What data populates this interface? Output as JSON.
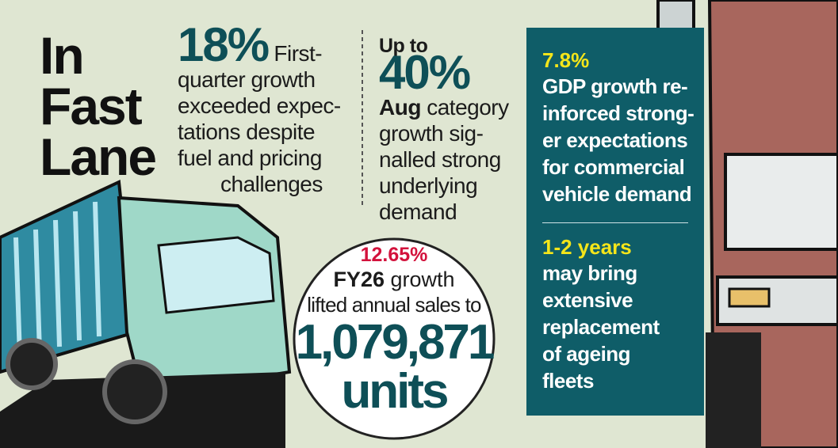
{
  "title": {
    "lines": [
      "In",
      "Fast",
      "Lane"
    ]
  },
  "stat_quarter": {
    "figure": "18%",
    "lines": [
      "First-",
      "quarter growth",
      "exceeded expec-",
      "tations despite",
      "fuel and pricing",
      "challenges"
    ]
  },
  "stat_august": {
    "prefix": "Up to",
    "figure": "40%",
    "lead": "Aug",
    "lines": [
      "category",
      "growth sig-",
      "nalled strong",
      "underlying",
      "demand"
    ]
  },
  "stat_fy26": {
    "figure": "12.65%",
    "lead": "FY26",
    "lead_rest": "growth",
    "line": "lifted annual sales to",
    "big": "1,079,871",
    "unit": "units"
  },
  "panel": {
    "gdp": {
      "figure": "7.8%",
      "lines": [
        "GDP growth re-",
        "inforced strong-",
        "er expectations",
        "for commercial",
        "vehicle demand"
      ]
    },
    "fleet": {
      "figure": "1-2 years",
      "lines": [
        "may bring",
        "extensive",
        "replacement",
        "of ageing",
        "fleets"
      ]
    }
  }
}
